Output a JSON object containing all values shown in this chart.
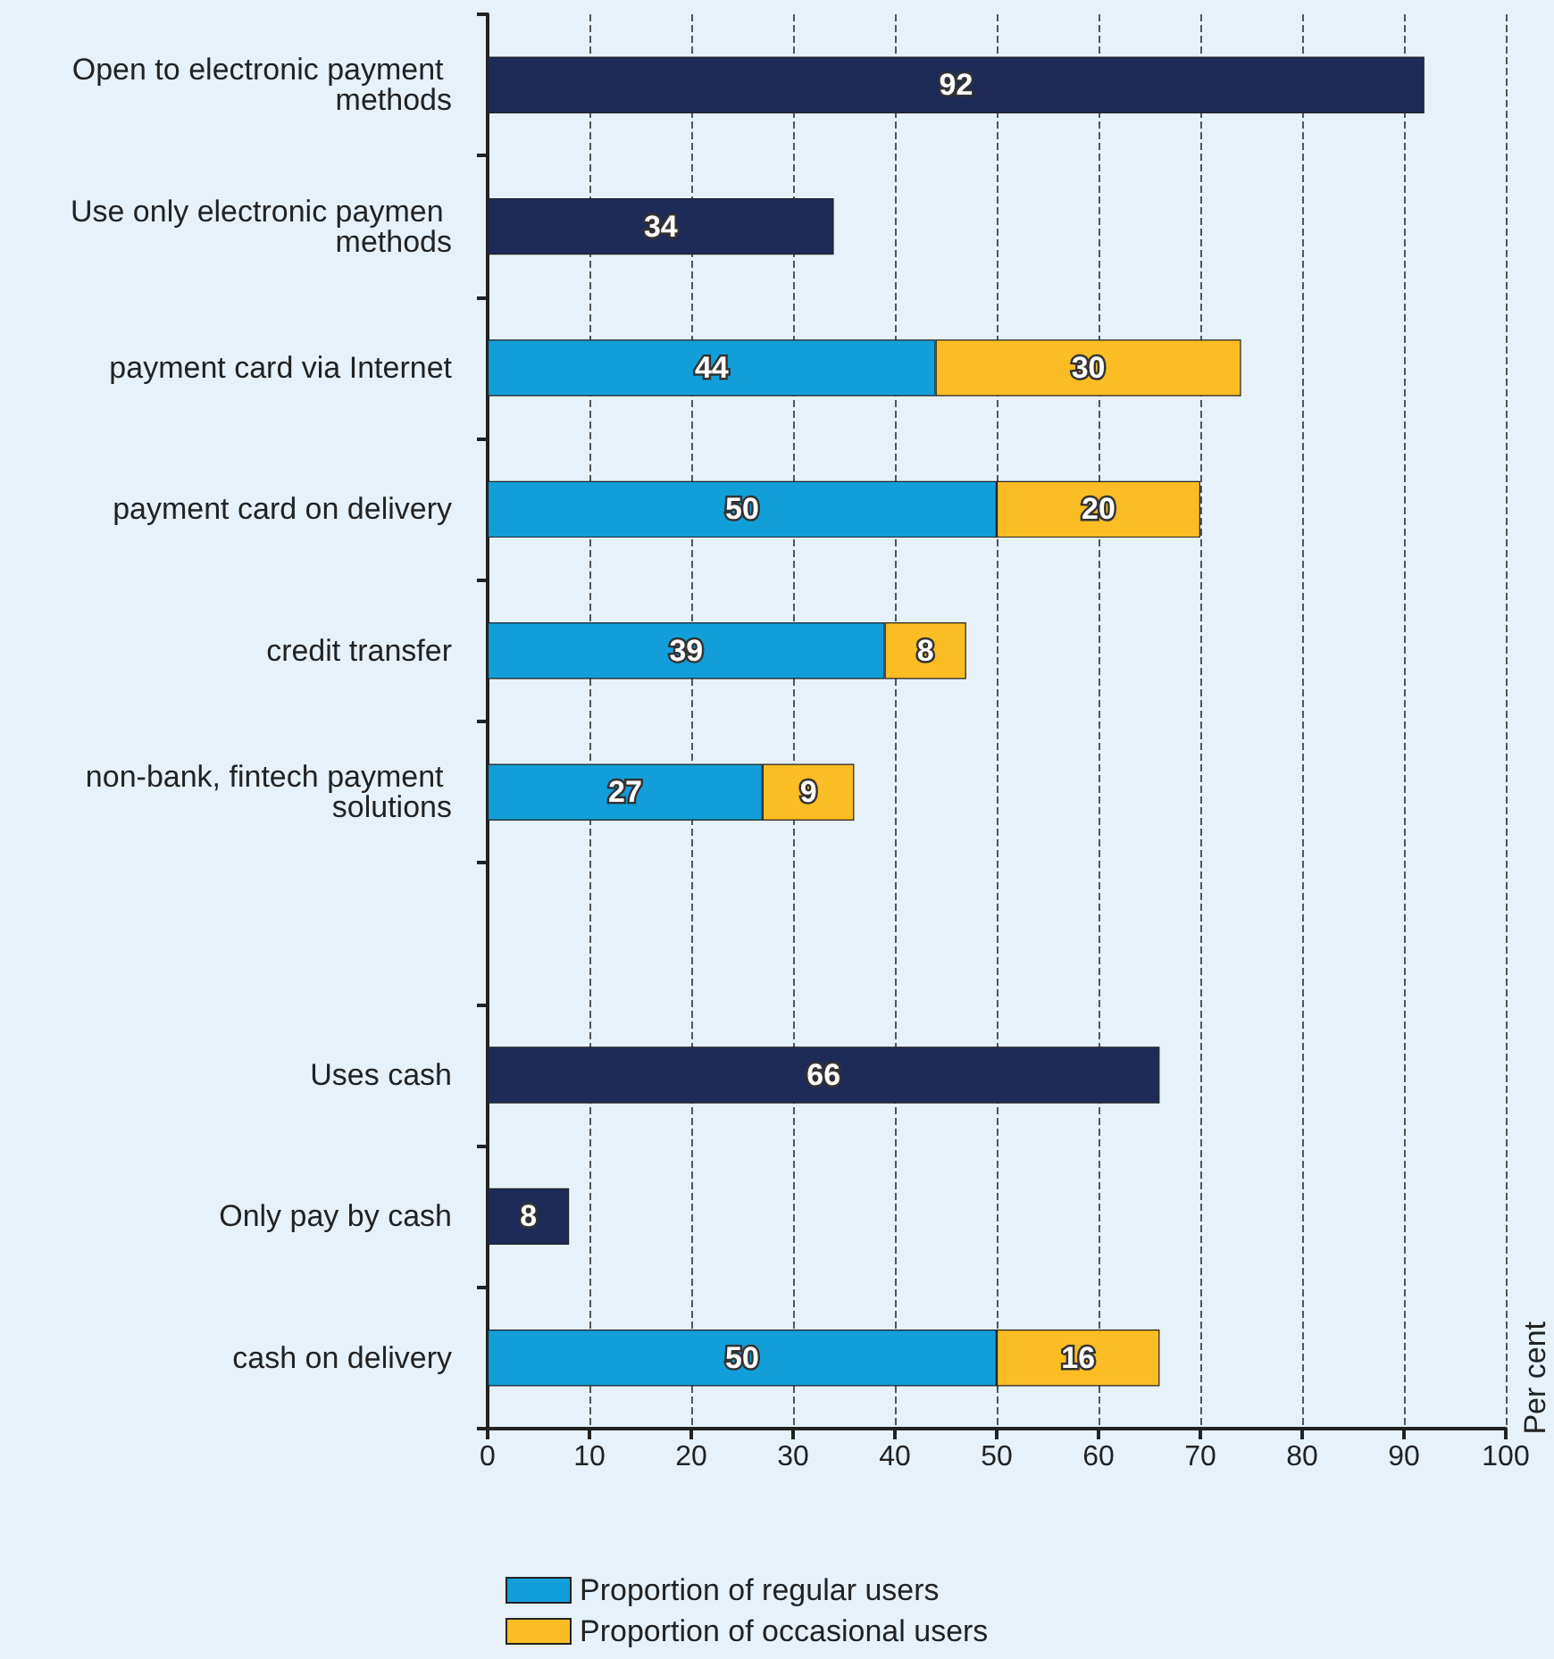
{
  "chart_data": {
    "type": "bar",
    "orientation": "horizontal",
    "stacked": true,
    "categories": [
      "Open to electronic payment methods",
      "Use only electronic paymen methods",
      "payment card via Internet",
      "payment card on delivery",
      "credit transfer",
      "non-bank, fintech payment solutions",
      null,
      "Uses cash",
      "Only pay by cash",
      "cash on delivery"
    ],
    "series": [
      {
        "color": "#1e2b58",
        "values": [
          92,
          34,
          null,
          null,
          null,
          null,
          null,
          66,
          8,
          null
        ]
      },
      {
        "name": "Proportion of regular users",
        "color": "#129fd9",
        "values": [
          null,
          null,
          44,
          50,
          39,
          27,
          null,
          null,
          null,
          50
        ]
      },
      {
        "name": "Proportion of occasional users",
        "color": "#fbbd24",
        "values": [
          null,
          null,
          30,
          20,
          8,
          9,
          null,
          null,
          null,
          16
        ]
      }
    ],
    "annotations": [
      "Per cent"
    ],
    "xlim": [
      0,
      100
    ],
    "xticks": [
      0,
      10,
      20,
      30,
      40,
      50,
      60,
      70,
      80,
      90,
      100
    ],
    "grid": "x",
    "legend": "bottom left",
    "data_labels": true
  }
}
